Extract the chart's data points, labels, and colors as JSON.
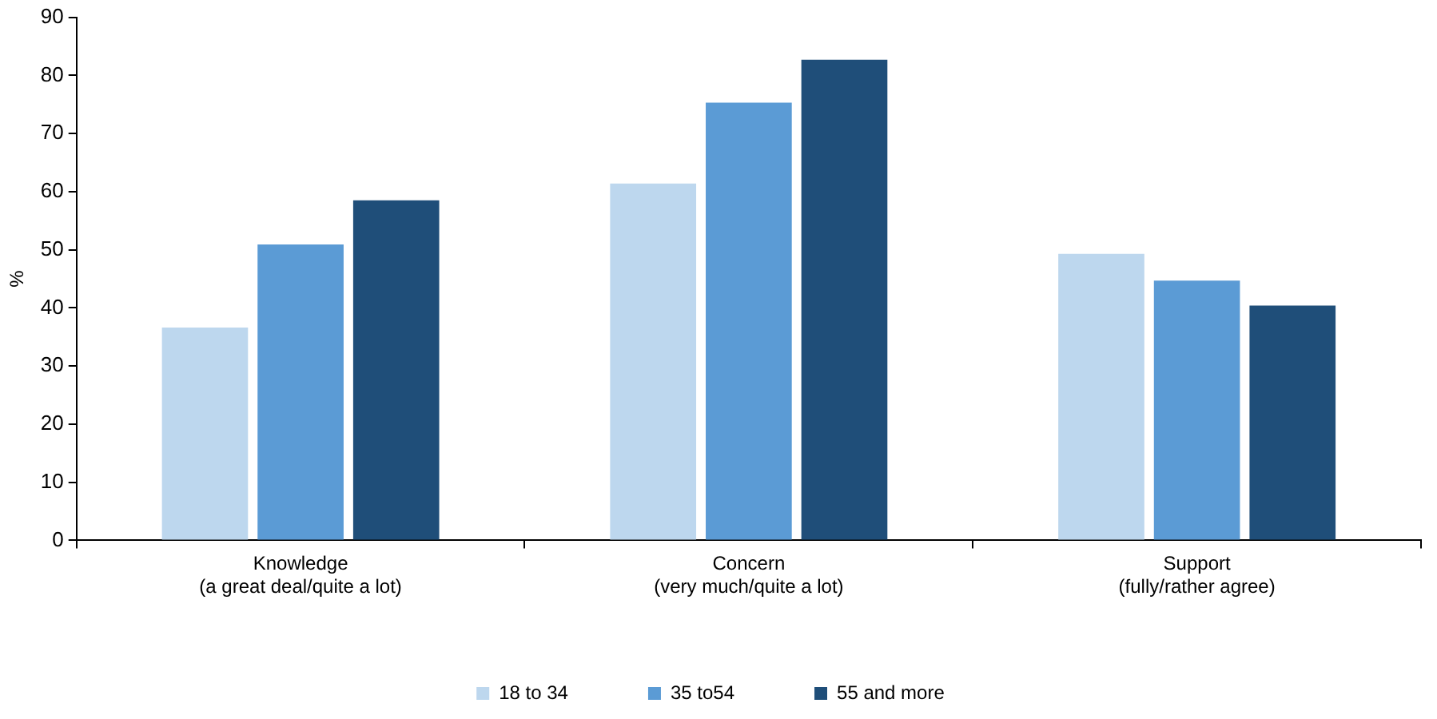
{
  "chart_data": {
    "type": "bar",
    "ylabel": "%",
    "categories": [
      "Knowledge\n(a great deal/quite a lot)",
      "Concern\n(very much/quite a lot)",
      "Support\n(fully/rather agree)"
    ],
    "series": [
      {
        "name": "18 to 34",
        "color": "#bdd7ee",
        "values": [
          36.6,
          61.4,
          49.3
        ]
      },
      {
        "name": "35 to54",
        "color": "#5b9bd5",
        "values": [
          50.9,
          75.3,
          44.7
        ]
      },
      {
        "name": "55 and more",
        "color": "#1f4e79",
        "values": [
          58.5,
          82.7,
          40.4
        ]
      }
    ],
    "ylim": [
      0,
      90
    ],
    "yticks": [
      0,
      10,
      20,
      30,
      40,
      50,
      60,
      70,
      80,
      90
    ],
    "grid": false,
    "legend": "bottom"
  }
}
